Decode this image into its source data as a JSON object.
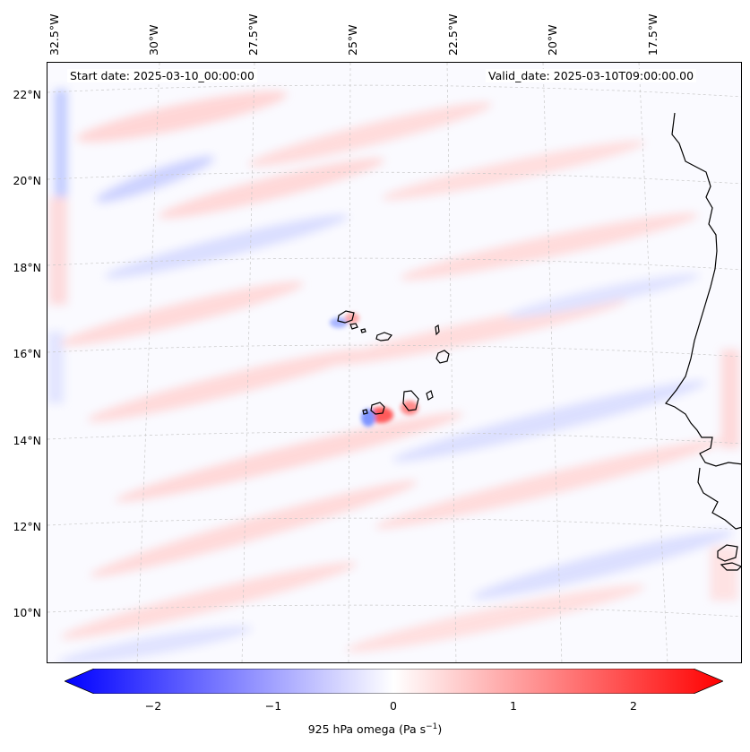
{
  "header": {
    "start_date": "Start date: 2025-03-10_00:00:00",
    "valid_date": "Valid_date: 2025-03-10T09:00:00.00"
  },
  "lon_labels": [
    "32.5°W",
    "30°W",
    "27.5°W",
    "25°W",
    "22.5°W",
    "20°W",
    "17.5°W"
  ],
  "lat_labels": [
    "22°N",
    "20°N",
    "18°N",
    "16°N",
    "14°N",
    "12°N",
    "10°N"
  ],
  "colorbar": {
    "label": "925 hPa omega (Pa s",
    "label_sup": "−1",
    "label_end": ")",
    "ticks": [
      "−2",
      "−1",
      "0",
      "1",
      "2"
    ],
    "range": [
      -2.5,
      2.5
    ],
    "colors": {
      "min": "#0000ff",
      "mid": "#ffffff",
      "max": "#ff0000"
    }
  },
  "map": {
    "field": "925 hPa omega",
    "background": "#fafaff",
    "coastline_color": "#000000",
    "gridline_color": "#c8c8c8"
  }
}
